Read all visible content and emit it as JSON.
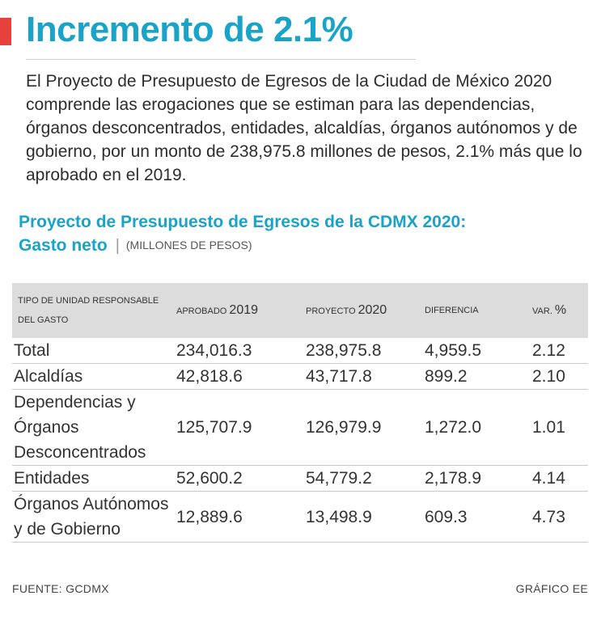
{
  "header": {
    "title": "Incremento de 2.1%",
    "intro": "El Proyecto de Presupuesto de Egresos de la Ciudad de México 2020 comprende las erogaciones que se estiman para las dependencias, órganos desconcentrados, entidades, alcaldías, órganos autónomos y de gobierno, por un monto de 238,975.8 millones de pesos, 2.1% más que lo aprobado en el 2019."
  },
  "chart_data": {
    "type": "table",
    "title": "Proyecto de Presupuesto de Egresos de la CDMX 2020:",
    "subtitle": "Gasto neto",
    "units": "(MILLONES DE PESOS)",
    "columns": [
      {
        "label": "Tipo de unidad responsable del gasto",
        "num": ""
      },
      {
        "label": "Aprobado",
        "num": "2019"
      },
      {
        "label": "Proyecto",
        "num": "2020"
      },
      {
        "label": "Diferencia",
        "num": ""
      },
      {
        "label": "Var.",
        "num": "%"
      }
    ],
    "rows": [
      {
        "unit": "Total",
        "aprobado_2019": "234,016.3",
        "proyecto_2020": "238,975.8",
        "diferencia": "4,959.5",
        "var": "2.12"
      },
      {
        "unit": "Alcaldías",
        "aprobado_2019": "42,818.6",
        "proyecto_2020": "43,717.8",
        "diferencia": "899.2",
        "var": "2.10"
      },
      {
        "unit": "Dependencias y Órganos Desconcentrados",
        "aprobado_2019": "125,707.9",
        "proyecto_2020": "126,979.9",
        "diferencia": "1,272.0",
        "var": "1.01"
      },
      {
        "unit": "Entidades",
        "aprobado_2019": "52,600.2",
        "proyecto_2020": "54,779.2",
        "diferencia": "2,178.9",
        "var": "4.14"
      },
      {
        "unit": "Órganos Autónomos y de Gobierno",
        "aprobado_2019": "12,889.6",
        "proyecto_2020": "13,498.9",
        "diferencia": "609.3",
        "var": "4.73"
      }
    ]
  },
  "footer": {
    "source": "FUENTE: GCDMX",
    "credit": "GRÁFICO EE"
  },
  "colors": {
    "accent_red": "#e8403a",
    "title_blue": "#1aa3c8",
    "header_gray": "#dcdcdc"
  }
}
